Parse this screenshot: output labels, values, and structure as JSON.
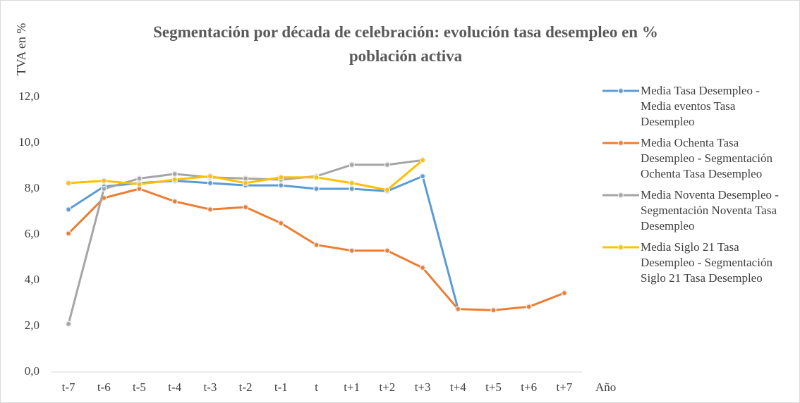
{
  "chart_data": {
    "type": "line",
    "title": "Segmentación por década de celebración: evolución tasa desempleo en % población activa",
    "y_label": "TVA en %",
    "x_label": "Año",
    "categories": [
      "t-7",
      "t-6",
      "t-5",
      "t-4",
      "t-3",
      "t-2",
      "t-1",
      "t",
      "t+1",
      "t+2",
      "t+3",
      "t+4",
      "t+5",
      "t+6",
      "t+7"
    ],
    "series": [
      {
        "name": "Media Tasa Desempleo - Media eventos Tasa Desempleo",
        "color": "#5b9bd5",
        "values": [
          7.1,
          8.1,
          8.25,
          8.35,
          8.25,
          8.15,
          8.15,
          8.0,
          8.0,
          7.9,
          8.55,
          2.75,
          null,
          null,
          null
        ]
      },
      {
        "name": "Media Ochenta Tasa Desempleo - Segmentación Ochenta Tasa Desempleo",
        "color": "#ed7d31",
        "values": [
          6.05,
          7.6,
          8.0,
          7.45,
          7.1,
          7.2,
          6.5,
          5.55,
          5.3,
          5.3,
          4.55,
          2.75,
          2.7,
          2.85,
          3.45
        ]
      },
      {
        "name": "Media Noventa Desempleo - Segmentación Noventa Tasa Desempleo",
        "color": "#a5a5a5",
        "values": [
          2.1,
          8.0,
          8.45,
          8.65,
          8.5,
          8.45,
          8.4,
          8.55,
          9.05,
          9.05,
          9.25,
          null,
          null,
          null,
          null
        ]
      },
      {
        "name": "Media Siglo 21 Tasa Desempleo - Segmentación Siglo 21 Tasa Desempleo",
        "color": "#ffc000",
        "values": [
          8.25,
          8.35,
          8.2,
          8.4,
          8.55,
          8.25,
          8.5,
          8.5,
          8.25,
          7.95,
          9.25,
          null,
          null,
          null,
          null
        ]
      }
    ],
    "ylim": [
      0,
      12
    ],
    "yticks": [
      {
        "value": 0,
        "label": "0,0"
      },
      {
        "value": 2,
        "label": "2,0"
      },
      {
        "value": 4,
        "label": "4,0"
      },
      {
        "value": 6,
        "label": "6,0"
      },
      {
        "value": 8,
        "label": "8,0"
      },
      {
        "value": 10,
        "label": "10,0"
      },
      {
        "value": 12,
        "label": "12,0"
      }
    ],
    "legend": "right"
  }
}
